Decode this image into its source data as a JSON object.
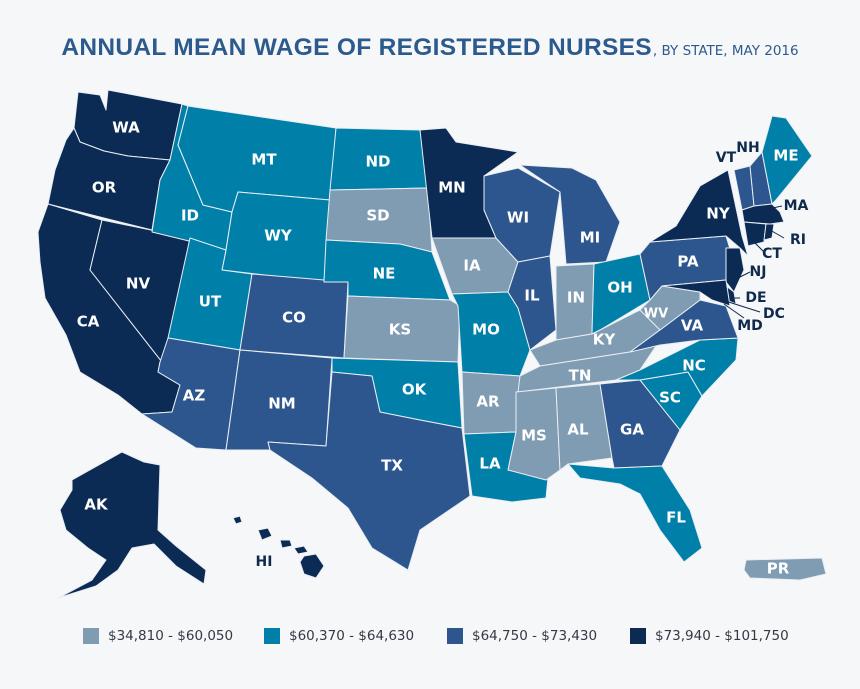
{
  "title": {
    "main": "ANNUAL MEAN WAGE OF REGISTERED NURSES",
    "sub": ", BY STATE, MAY 2016"
  },
  "colors": {
    "c1": "#7f9cb3",
    "c2": "#0080a8",
    "c3": "#2d568e",
    "c4": "#0b2b55"
  },
  "legend": [
    {
      "label": "$34,810 - $60,050",
      "color": "#7f9cb3"
    },
    {
      "label": "$60,370 - $64,630",
      "color": "#0080a8"
    },
    {
      "label": "$64,750 - $73,430",
      "color": "#2d568e"
    },
    {
      "label": "$73,940 - $101,750",
      "color": "#0b2b55"
    }
  ],
  "states": [
    {
      "code": "WA",
      "bin": 4
    },
    {
      "code": "OR",
      "bin": 4
    },
    {
      "code": "CA",
      "bin": 4
    },
    {
      "code": "NV",
      "bin": 4
    },
    {
      "code": "ID",
      "bin": 2
    },
    {
      "code": "MT",
      "bin": 2
    },
    {
      "code": "WY",
      "bin": 2
    },
    {
      "code": "UT",
      "bin": 2
    },
    {
      "code": "CO",
      "bin": 3
    },
    {
      "code": "AZ",
      "bin": 3
    },
    {
      "code": "NM",
      "bin": 3
    },
    {
      "code": "ND",
      "bin": 2
    },
    {
      "code": "SD",
      "bin": 1
    },
    {
      "code": "NE",
      "bin": 2
    },
    {
      "code": "KS",
      "bin": 1
    },
    {
      "code": "OK",
      "bin": 2
    },
    {
      "code": "TX",
      "bin": 3
    },
    {
      "code": "MN",
      "bin": 4
    },
    {
      "code": "IA",
      "bin": 1
    },
    {
      "code": "MO",
      "bin": 2
    },
    {
      "code": "AR",
      "bin": 1
    },
    {
      "code": "LA",
      "bin": 2
    },
    {
      "code": "WI",
      "bin": 3
    },
    {
      "code": "IL",
      "bin": 3
    },
    {
      "code": "MI",
      "bin": 3
    },
    {
      "code": "IN",
      "bin": 1
    },
    {
      "code": "OH",
      "bin": 2
    },
    {
      "code": "KY",
      "bin": 1
    },
    {
      "code": "TN",
      "bin": 1
    },
    {
      "code": "MS",
      "bin": 1
    },
    {
      "code": "AL",
      "bin": 1
    },
    {
      "code": "GA",
      "bin": 3
    },
    {
      "code": "FL",
      "bin": 2
    },
    {
      "code": "SC",
      "bin": 2
    },
    {
      "code": "NC",
      "bin": 2
    },
    {
      "code": "VA",
      "bin": 3
    },
    {
      "code": "WV",
      "bin": 1
    },
    {
      "code": "PA",
      "bin": 3
    },
    {
      "code": "NY",
      "bin": 4
    },
    {
      "code": "VT",
      "bin": 3
    },
    {
      "code": "NH",
      "bin": 3
    },
    {
      "code": "ME",
      "bin": 2
    },
    {
      "code": "MA",
      "bin": 4
    },
    {
      "code": "RI",
      "bin": 4
    },
    {
      "code": "CT",
      "bin": 4
    },
    {
      "code": "NJ",
      "bin": 4
    },
    {
      "code": "DE",
      "bin": 4
    },
    {
      "code": "MD",
      "bin": 4
    },
    {
      "code": "DC",
      "bin": 4
    },
    {
      "code": "AK",
      "bin": 4
    },
    {
      "code": "HI",
      "bin": 4
    },
    {
      "code": "PR",
      "bin": 1
    }
  ]
}
